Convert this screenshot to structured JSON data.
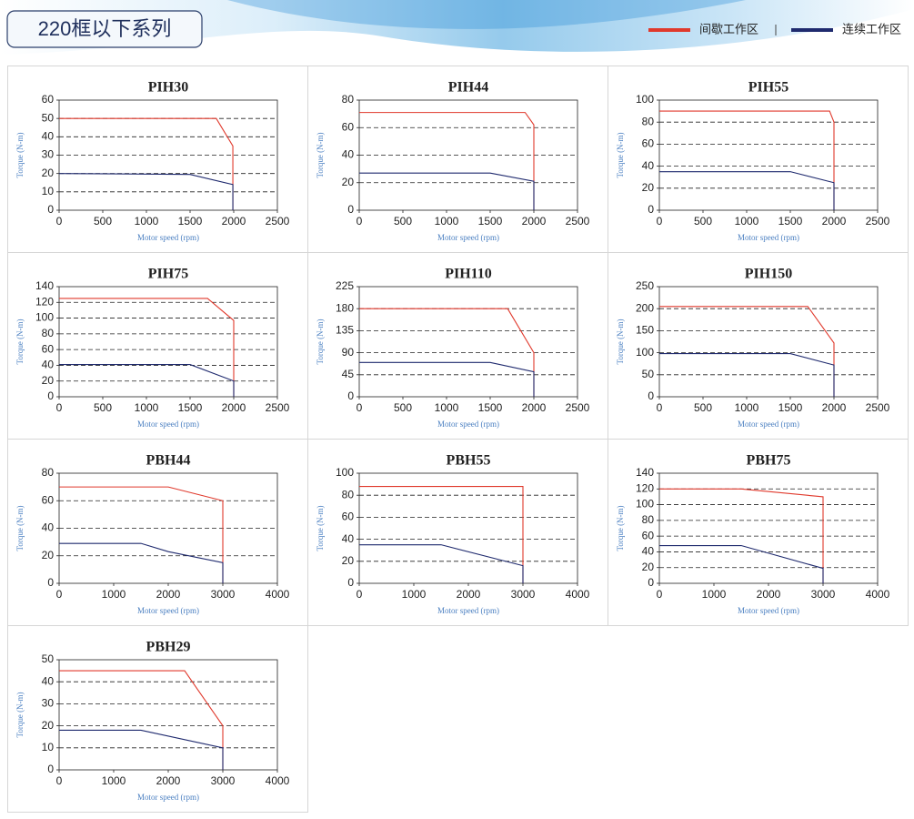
{
  "header": {
    "title": "220框以下系列",
    "legend": [
      {
        "name": "间歇工作区",
        "color": "#e0392c"
      },
      {
        "name": "连续工作区",
        "color": "#1f2a6e"
      }
    ]
  },
  "chart_data": [
    {
      "type": "line",
      "title": "PIH30",
      "xlabel": "Motor speed (rpm)",
      "ylabel": "Torque (N-m)",
      "xlim": [
        0,
        2500
      ],
      "xticks": [
        0,
        500,
        1000,
        1500,
        2000,
        2500
      ],
      "ylim": [
        0,
        60
      ],
      "yticks": [
        0,
        10,
        20,
        30,
        40,
        50,
        60
      ],
      "grid": true,
      "series": [
        {
          "x": [
            0,
            1800,
            1990,
            1990
          ],
          "values": [
            50,
            50,
            35,
            0
          ]
        },
        {
          "x": [
            0,
            1500,
            1990,
            1990
          ],
          "values": [
            20,
            19.5,
            14,
            0
          ]
        }
      ]
    },
    {
      "type": "line",
      "title": "PIH44",
      "xlabel": "Motor speed (rpm)",
      "ylabel": "Torque (N-m)",
      "xlim": [
        0,
        2500
      ],
      "xticks": [
        0,
        500,
        1000,
        1500,
        2000,
        2500
      ],
      "ylim": [
        0,
        80
      ],
      "yticks": [
        0,
        20,
        40,
        60,
        80
      ],
      "grid": true,
      "series": [
        {
          "x": [
            0,
            1900,
            2000,
            2000
          ],
          "values": [
            71,
            71,
            62,
            0
          ]
        },
        {
          "x": [
            0,
            1500,
            2000,
            2000
          ],
          "values": [
            27,
            27,
            21,
            0
          ]
        }
      ]
    },
    {
      "type": "line",
      "title": "PIH55",
      "xlabel": "Motor speed (rpm)",
      "ylabel": "Torque (N-m)",
      "xlim": [
        0,
        2500
      ],
      "xticks": [
        0,
        500,
        1000,
        1500,
        2000,
        2500
      ],
      "ylim": [
        0,
        100
      ],
      "yticks": [
        0,
        20,
        40,
        60,
        80,
        100
      ],
      "grid": true,
      "series": [
        {
          "x": [
            0,
            1950,
            2000,
            2000
          ],
          "values": [
            90,
            90,
            80,
            0
          ]
        },
        {
          "x": [
            0,
            1500,
            2000,
            2000
          ],
          "values": [
            35,
            35,
            25,
            0
          ]
        }
      ]
    },
    {
      "type": "line",
      "title": "PIH75",
      "xlabel": "Motor speed (rpm)",
      "ylabel": "Torque (N-m)",
      "xlim": [
        0,
        2500
      ],
      "xticks": [
        0,
        500,
        1000,
        1500,
        2000,
        2500
      ],
      "ylim": [
        0,
        140
      ],
      "yticks": [
        0,
        20,
        40,
        60,
        80,
        100,
        120,
        140
      ],
      "grid": true,
      "series": [
        {
          "x": [
            0,
            1700,
            2000,
            2000
          ],
          "values": [
            125,
            125,
            97,
            0
          ]
        },
        {
          "x": [
            0,
            1500,
            2000,
            2000
          ],
          "values": [
            41,
            41,
            20,
            0
          ]
        }
      ]
    },
    {
      "type": "line",
      "title": "PIH110",
      "xlabel": "Motor speed (rpm)",
      "ylabel": "Torque (N-m)",
      "xlim": [
        0,
        2500
      ],
      "xticks": [
        0,
        500,
        1000,
        1500,
        2000,
        2500
      ],
      "ylim": [
        0,
        225
      ],
      "yticks": [
        0,
        45,
        90,
        135,
        180,
        225
      ],
      "grid": true,
      "series": [
        {
          "x": [
            0,
            1700,
            2000,
            2000
          ],
          "values": [
            180,
            180,
            90,
            0
          ]
        },
        {
          "x": [
            0,
            1500,
            2000,
            2000
          ],
          "values": [
            70,
            70,
            51,
            0
          ]
        }
      ]
    },
    {
      "type": "line",
      "title": "PIH150",
      "xlabel": "Motor speed (rpm)",
      "ylabel": "Torque (N-m)",
      "xlim": [
        0,
        2500
      ],
      "xticks": [
        0,
        500,
        1000,
        1500,
        2000,
        2500
      ],
      "ylim": [
        0,
        250
      ],
      "yticks": [
        0,
        50,
        100,
        150,
        200,
        250
      ],
      "grid": true,
      "series": [
        {
          "x": [
            0,
            1700,
            2000,
            2000
          ],
          "values": [
            205,
            205,
            122,
            0
          ]
        },
        {
          "x": [
            0,
            1500,
            2000,
            2000
          ],
          "values": [
            98,
            98,
            72,
            0
          ]
        }
      ]
    },
    {
      "type": "line",
      "title": "PBH44",
      "xlabel": "Motor speed (rpm)",
      "ylabel": "Torque (N-m)",
      "xlim": [
        0,
        4000
      ],
      "xticks": [
        0,
        1000,
        2000,
        3000,
        4000
      ],
      "ylim": [
        0,
        80
      ],
      "yticks": [
        0,
        20,
        40,
        60,
        80
      ],
      "grid": true,
      "series": [
        {
          "x": [
            0,
            2000,
            3000,
            3000
          ],
          "values": [
            70,
            70,
            60,
            0
          ]
        },
        {
          "x": [
            0,
            1500,
            2000,
            3000,
            3000
          ],
          "values": [
            29,
            29,
            23,
            15,
            0
          ]
        }
      ]
    },
    {
      "type": "line",
      "title": "PBH55",
      "xlabel": "Motor speed (rpm)",
      "ylabel": "Torque (N-m)",
      "xlim": [
        0,
        4000
      ],
      "xticks": [
        0,
        1000,
        2000,
        3000,
        4000
      ],
      "ylim": [
        0,
        100
      ],
      "yticks": [
        0,
        20,
        40,
        60,
        80,
        100
      ],
      "grid": true,
      "series": [
        {
          "x": [
            0,
            3000,
            3000
          ],
          "values": [
            88,
            88,
            0
          ]
        },
        {
          "x": [
            0,
            1500,
            3000,
            3000
          ],
          "values": [
            35,
            35,
            16,
            0
          ]
        }
      ]
    },
    {
      "type": "line",
      "title": "PBH75",
      "xlabel": "Motor speed (rpm)",
      "ylabel": "Torque (N-m)",
      "xlim": [
        0,
        4000
      ],
      "xticks": [
        0,
        1000,
        2000,
        3000,
        4000
      ],
      "ylim": [
        0,
        140
      ],
      "yticks": [
        0,
        20,
        40,
        60,
        80,
        100,
        120,
        140
      ],
      "grid": true,
      "series": [
        {
          "x": [
            0,
            1500,
            3000,
            3000
          ],
          "values": [
            120,
            120,
            110,
            0
          ]
        },
        {
          "x": [
            0,
            1500,
            3000,
            3000
          ],
          "values": [
            48,
            48,
            19,
            0
          ]
        }
      ]
    },
    {
      "type": "line",
      "title": "PBH29",
      "xlabel": "Motor speed (rpm)",
      "ylabel": "Torque (N-m)",
      "xlim": [
        0,
        4000
      ],
      "xticks": [
        0,
        1000,
        2000,
        3000,
        4000
      ],
      "ylim": [
        0,
        50
      ],
      "yticks": [
        0,
        10,
        20,
        30,
        40,
        50
      ],
      "grid": true,
      "series": [
        {
          "x": [
            0,
            2300,
            3000,
            3000
          ],
          "values": [
            45,
            45,
            20,
            0
          ]
        },
        {
          "x": [
            0,
            1500,
            3000,
            3000
          ],
          "values": [
            18,
            18,
            10,
            0
          ]
        }
      ]
    }
  ]
}
